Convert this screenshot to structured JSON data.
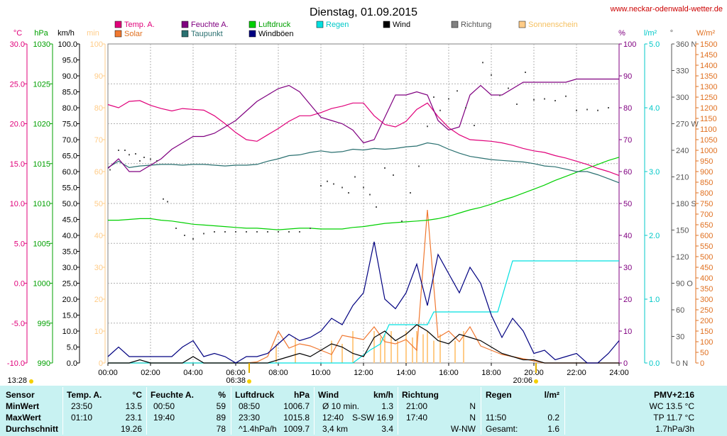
{
  "title": "Dienstag, 01.09.2015",
  "website": "www.neckar-odenwald-wetter.de",
  "time_top": "",
  "colors": {
    "temp": "#e0007a",
    "humidity": "#800080",
    "pressure": "#00d000",
    "rain": "#00e0e0",
    "wind": "#000000",
    "direction": "#555555",
    "sunshine": "#ffcc88",
    "solar": "#f07830",
    "dewpoint": "#2a7070",
    "gust": "#000080",
    "grid": "#c0c0c0",
    "table_bg": "#c8f2f2"
  },
  "legend": [
    {
      "label": "Temp. A.",
      "color": "#e0007a",
      "text_color": "#e0007a"
    },
    {
      "label": "Feuchte A.",
      "color": "#800080",
      "text_color": "#800080"
    },
    {
      "label": "Luftdruck",
      "color": "#00d000",
      "text_color": "#00a000"
    },
    {
      "label": "Regen",
      "color": "#00e0e0",
      "text_color": "#00c8c8"
    },
    {
      "label": "Wind",
      "color": "#000000",
      "text_color": "#000000"
    },
    {
      "label": "Richtung",
      "color": "#808080",
      "text_color": "#555555"
    },
    {
      "label": "Sonnenschein",
      "color": "#ffcc88",
      "text_color": "#f5c060"
    },
    {
      "label": "Solar",
      "color": "#f07830",
      "text_color": "#e07020"
    },
    {
      "label": "Taupunkt",
      "color": "#2a7070",
      "text_color": "#2a7070"
    },
    {
      "label": "Windböen",
      "color": "#000080",
      "text_color": "#000000"
    }
  ],
  "axis_units": {
    "temp": "°C",
    "pressure": "hPa",
    "wind": "km/h",
    "sunshine": "min",
    "humidity": "%",
    "rain": "l/m²",
    "direction": "°",
    "solar": "W/m²"
  },
  "axis_ticks": {
    "temp": [
      "30.0",
      "25.0",
      "20.0",
      "15.0",
      "10.0",
      "5.0",
      "0.0",
      "-5.0",
      "-10.0"
    ],
    "pressure": [
      "1030",
      "1025",
      "1020",
      "1015",
      "1010",
      "1005",
      "1000",
      "995",
      "990"
    ],
    "wind": [
      "100.0",
      "95.0",
      "90.0",
      "85.0",
      "80.0",
      "75.0",
      "70.0",
      "65.0",
      "60.0",
      "55.0",
      "50.0",
      "45.0",
      "40.0",
      "35.0",
      "30.0",
      "25.0",
      "20.0",
      "15.0",
      "10.0",
      "5.0",
      "0.0"
    ],
    "sunshine": [
      "100",
      "90",
      "80",
      "70",
      "60",
      "50",
      "40",
      "30",
      "20",
      "10",
      "0"
    ],
    "humidity": [
      "100",
      "90",
      "80",
      "70",
      "60",
      "50",
      "40",
      "30",
      "20",
      "10",
      "0"
    ],
    "rain": [
      "5.0",
      "4.0",
      "3.0",
      "2.0",
      "1.0",
      "0.0"
    ],
    "direction": [
      "360 N",
      "330",
      "300",
      "270 W",
      "240",
      "210",
      "180 S",
      "150",
      "120",
      "90 O",
      "60",
      "30",
      "0 N"
    ],
    "solar": [
      "1500",
      "1450",
      "1400",
      "1350",
      "1300",
      "1250",
      "1200",
      "1150",
      "1100",
      "1050",
      "1000",
      "950",
      "900",
      "850",
      "800",
      "750",
      "700",
      "650",
      "600",
      "550",
      "500",
      "450",
      "400",
      "350",
      "300",
      "250",
      "200",
      "150",
      "100",
      "50",
      "0"
    ],
    "x": [
      "00:00",
      "02:00",
      "04:00",
      "06:00",
      "08:00",
      "10:00",
      "12:00",
      "14:00",
      "16:00",
      "18:00",
      "20:00",
      "22:00",
      "24:00"
    ]
  },
  "sun": {
    "moonrise": "13:28",
    "sunrise": "06:38",
    "sunset": "20:06"
  },
  "chart_data": {
    "type": "line",
    "title": "Dienstag, 01.09.2015",
    "x_unit": "hours",
    "xlim": [
      0,
      24
    ],
    "ylim": {
      "temp": [
        -10,
        30
      ],
      "pressure": [
        990,
        1030
      ],
      "wind": [
        0,
        100
      ],
      "sunshine": [
        0,
        100
      ],
      "humidity": [
        0,
        100
      ],
      "rain": [
        0,
        5
      ],
      "direction": [
        0,
        360
      ],
      "solar": [
        0,
        1500
      ]
    },
    "series": [
      {
        "name": "Temp. A.",
        "axis": "temp",
        "x": [
          0,
          0.5,
          1,
          1.5,
          2,
          2.5,
          3,
          3.5,
          4,
          4.5,
          5,
          5.5,
          6,
          6.5,
          7,
          7.5,
          8,
          8.5,
          9,
          9.5,
          10,
          10.5,
          11,
          11.5,
          12,
          12.5,
          13,
          13.5,
          14,
          14.5,
          15,
          15.5,
          16,
          16.5,
          17,
          17.5,
          18,
          18.5,
          19,
          19.5,
          20,
          20.5,
          21,
          21.5,
          22,
          22.5,
          23,
          23.5,
          24
        ],
        "values": [
          22.4,
          22.0,
          22.8,
          22.9,
          22.3,
          21.9,
          21.6,
          21.9,
          21.8,
          21.7,
          21.0,
          20.0,
          18.9,
          18.0,
          17.8,
          18.6,
          19.4,
          20.3,
          21.0,
          21.0,
          21.4,
          21.9,
          22.2,
          22.6,
          22.6,
          21.0,
          19.9,
          19.6,
          20.3,
          21.8,
          22.6,
          20.9,
          19.5,
          18.6,
          18.0,
          17.9,
          17.8,
          17.6,
          17.3,
          16.9,
          16.6,
          16.4,
          16.0,
          15.7,
          15.3,
          14.9,
          14.4,
          14.0,
          13.5
        ]
      },
      {
        "name": "Feuchte A.",
        "axis": "humidity",
        "x": [
          0,
          0.5,
          1,
          1.5,
          2,
          2.5,
          3,
          3.5,
          4,
          4.5,
          5,
          5.5,
          6,
          6.5,
          7,
          7.5,
          8,
          8.5,
          9,
          9.5,
          10,
          10.5,
          11,
          11.5,
          12,
          12.5,
          13,
          13.5,
          14,
          14.5,
          15,
          15.5,
          16,
          16.5,
          17,
          17.5,
          18,
          18.5,
          19,
          19.5,
          20,
          20.5,
          21,
          21.5,
          22,
          22.5,
          23,
          23.5,
          24
        ],
        "values": [
          61,
          64,
          60,
          60,
          62,
          64,
          67,
          69,
          71,
          71,
          72,
          74,
          76,
          79,
          82,
          84,
          86,
          87,
          85,
          81,
          77,
          76,
          75,
          73,
          69,
          70,
          77,
          84,
          84,
          85,
          84,
          76,
          73,
          74,
          84,
          87,
          84,
          84,
          86,
          88,
          88,
          88,
          88,
          88,
          89,
          89,
          89,
          89,
          89
        ]
      },
      {
        "name": "Taupunkt",
        "axis": "temp",
        "x": [
          0,
          0.5,
          1,
          1.5,
          2,
          2.5,
          3,
          3.5,
          4,
          4.5,
          5,
          5.5,
          6,
          6.5,
          7,
          7.5,
          8,
          8.5,
          9,
          9.5,
          10,
          10.5,
          11,
          11.5,
          12,
          12.5,
          13,
          13.5,
          14,
          14.5,
          15,
          15.5,
          16,
          16.5,
          17,
          17.5,
          18,
          18.5,
          19,
          19.5,
          20,
          20.5,
          21,
          21.5,
          22,
          22.5,
          23,
          23.5,
          24
        ],
        "values": [
          14.5,
          15.3,
          14.5,
          14.7,
          14.8,
          14.9,
          14.9,
          14.8,
          14.9,
          14.9,
          14.8,
          14.7,
          14.8,
          14.8,
          14.9,
          15.3,
          15.6,
          16.0,
          16.1,
          16.4,
          16.6,
          16.4,
          16.5,
          16.8,
          16.7,
          16.9,
          16.8,
          16.9,
          17.1,
          17.2,
          17.6,
          17.4,
          16.8,
          16.3,
          15.9,
          15.7,
          15.5,
          15.4,
          15.3,
          15.2,
          15.0,
          14.7,
          14.6,
          14.3,
          14.0,
          14.0,
          13.6,
          13.1,
          12.6
        ]
      },
      {
        "name": "Luftdruck",
        "axis": "pressure",
        "x": [
          0,
          0.5,
          1,
          1.5,
          2,
          2.5,
          3,
          3.5,
          4,
          4.5,
          5,
          5.5,
          6,
          6.5,
          7,
          7.5,
          8,
          8.5,
          9,
          9.5,
          10,
          10.5,
          11,
          11.5,
          12,
          12.5,
          13,
          13.5,
          14,
          14.5,
          15,
          15.5,
          16,
          16.5,
          17,
          17.5,
          18,
          18.5,
          19,
          19.5,
          20,
          20.5,
          21,
          21.5,
          22,
          22.5,
          23,
          23.5,
          24
        ],
        "values": [
          1007.9,
          1007.9,
          1008.0,
          1008.1,
          1008.1,
          1007.9,
          1007.8,
          1007.6,
          1007.4,
          1007.3,
          1007.2,
          1007.1,
          1007.0,
          1006.9,
          1006.9,
          1006.8,
          1006.7,
          1006.8,
          1006.9,
          1006.9,
          1006.8,
          1006.8,
          1006.8,
          1007.0,
          1007.1,
          1007.3,
          1007.5,
          1007.6,
          1007.7,
          1007.8,
          1007.9,
          1008.1,
          1008.4,
          1008.8,
          1009.2,
          1009.5,
          1009.9,
          1010.4,
          1010.8,
          1011.3,
          1011.8,
          1012.3,
          1012.9,
          1013.4,
          1013.9,
          1014.4,
          1014.9,
          1015.4,
          1015.8
        ]
      },
      {
        "name": "Wind",
        "axis": "wind",
        "x": [
          0,
          0.5,
          1,
          1.5,
          2,
          2.5,
          3,
          3.5,
          4,
          4.5,
          5,
          5.5,
          6,
          6.5,
          7,
          7.5,
          8,
          8.5,
          9,
          9.5,
          10,
          10.5,
          11,
          11.5,
          12,
          12.5,
          13,
          13.5,
          14,
          14.5,
          15,
          15.5,
          16,
          16.5,
          17,
          17.5,
          18,
          18.5,
          19,
          19.5,
          20,
          20.5,
          21,
          21.5,
          22,
          22.5,
          23,
          23.5,
          24
        ],
        "values": [
          0,
          0,
          0,
          1,
          0,
          0,
          0,
          0,
          2,
          0,
          0,
          0,
          0,
          0,
          0,
          0,
          1,
          2,
          3,
          2,
          4,
          6,
          5,
          3,
          2,
          8,
          10,
          7,
          9,
          12,
          10,
          7,
          6,
          9,
          8,
          7,
          5,
          3,
          2,
          1,
          1,
          0,
          0,
          0,
          0,
          0,
          0,
          0,
          0
        ]
      },
      {
        "name": "Windböen",
        "axis": "wind",
        "x": [
          0,
          0.5,
          1,
          1.5,
          2,
          2.5,
          3,
          3.5,
          4,
          4.5,
          5,
          5.5,
          6,
          6.5,
          7,
          7.5,
          8,
          8.5,
          9,
          9.5,
          10,
          10.5,
          11,
          11.5,
          12,
          12.5,
          13,
          13.5,
          14,
          14.5,
          15,
          15.5,
          16,
          16.5,
          17,
          17.5,
          18,
          18.5,
          19,
          19.5,
          20,
          20.5,
          21,
          21.5,
          22,
          22.5,
          23,
          23.5,
          24
        ],
        "values": [
          2,
          5,
          2,
          2,
          2,
          2,
          2,
          5,
          7,
          2,
          3,
          2,
          0,
          2,
          2,
          3,
          6,
          9,
          7,
          8,
          10,
          14,
          12,
          18,
          22,
          38,
          20,
          17,
          22,
          31,
          18,
          34,
          28,
          22,
          30,
          25,
          15,
          8,
          14,
          10,
          3,
          4,
          1,
          2,
          3,
          0,
          0,
          3,
          7
        ]
      },
      {
        "name": "Regen",
        "axis": "rain",
        "x": [
          0,
          11.5,
          12.3,
          12.8,
          13.2,
          15.0,
          15.3,
          17.5,
          18.3,
          19.0,
          24
        ],
        "values": [
          0,
          0,
          0.2,
          0.3,
          0.6,
          0.6,
          0.8,
          0.8,
          0.8,
          1.6,
          1.6
        ]
      },
      {
        "name": "Solar",
        "axis": "solar",
        "x": [
          0,
          6.5,
          7,
          7.5,
          8,
          8.5,
          9,
          9.5,
          10,
          10.5,
          11,
          11.5,
          12,
          12.5,
          13,
          13.5,
          14,
          14.5,
          15,
          15.5,
          16,
          16.5,
          17,
          17.5,
          18,
          18.5,
          19,
          19.5,
          20,
          20.5,
          24
        ],
        "values": [
          0,
          0,
          5,
          30,
          150,
          70,
          90,
          80,
          60,
          40,
          130,
          120,
          110,
          170,
          100,
          90,
          110,
          60,
          720,
          120,
          150,
          100,
          170,
          80,
          60,
          40,
          30,
          20,
          10,
          0,
          0
        ]
      },
      {
        "name": "Sonnenschein",
        "axis": "sunshine",
        "type": "bar",
        "x": [
          7.9,
          8.8,
          10.5,
          11.0,
          11.5,
          12.5,
          12.8,
          13.0,
          13.3,
          13.6,
          14.0,
          14.3,
          14.5,
          14.8,
          15.0,
          15.3,
          15.6,
          16.3,
          16.7
        ],
        "values": [
          6,
          8,
          7,
          6,
          10,
          10,
          8,
          9,
          10,
          7,
          10,
          8,
          10,
          9,
          10,
          7,
          9,
          7,
          10
        ]
      },
      {
        "name": "Richtung",
        "axis": "direction",
        "type": "scatter",
        "x": [
          0.1,
          0.5,
          0.8,
          1.0,
          1.3,
          1.5,
          1.7,
          2.0,
          2.3,
          2.6,
          2.8,
          3.2,
          3.6,
          4.0,
          4.5,
          5.0,
          5.5,
          6.0,
          6.5,
          7.0,
          7.5,
          8.0,
          8.5,
          9.0,
          9.5,
          10.0,
          10.3,
          10.6,
          11.0,
          11.3,
          11.6,
          12.0,
          12.3,
          12.6,
          13.0,
          13.4,
          13.8,
          14.2,
          14.6,
          15.0,
          15.3,
          15.6,
          16.0,
          16.4,
          16.8,
          17.2,
          17.6,
          18.0,
          18.4,
          18.8,
          19.2,
          19.6,
          20.0,
          20.5,
          21.0,
          21.5,
          22.0,
          22.5,
          23.0,
          23.5
        ],
        "values": [
          218,
          240,
          240,
          235,
          236,
          228,
          232,
          230,
          228,
          185,
          182,
          152,
          144,
          140,
          146,
          148,
          148,
          148,
          148,
          148,
          148,
          148,
          148,
          148,
          152,
          200,
          205,
          202,
          198,
          192,
          210,
          198,
          190,
          176,
          220,
          212,
          160,
          192,
          222,
          267,
          300,
          285,
          298,
          307,
          288,
          268,
          339,
          325,
          302,
          310,
          292,
          328,
          297,
          298,
          296,
          301,
          285,
          286,
          285,
          288
        ]
      }
    ]
  },
  "table": {
    "headers": {
      "sensor": "Sensor",
      "temp": "Temp. A.",
      "temp_unit": "°C",
      "hum": "Feuchte A.",
      "hum_unit": "%",
      "press": "Luftdruck",
      "press_unit": "hPa",
      "wind": "Wind",
      "wind_unit": "km/h",
      "dir": "Richtung",
      "rain": "Regen",
      "rain_unit": "l/m²",
      "pmv": "PMV+2:16"
    },
    "rows": [
      {
        "label": "MinWert",
        "temp_time": "23:50",
        "temp_val": "13.5",
        "hum_time": "00:50",
        "hum_val": "59",
        "press_time": "08:50",
        "press_val": "1006.7",
        "wind_time": "Ø 10 min.",
        "wind_val": "1.3",
        "dir_time": "21:00",
        "dir_val": "N",
        "rain_time": "",
        "rain_val": "",
        "extra": "WC 13.5 °C"
      },
      {
        "label": "MaxWert",
        "temp_time": "01:10",
        "temp_val": "23.1",
        "hum_time": "19:40",
        "hum_val": "89",
        "press_time": "23:30",
        "press_val": "1015.8",
        "wind_time": "12:40",
        "wind_val": "S-SW 16.9",
        "dir_time": "17:40",
        "dir_val": "N",
        "rain_time": "11:50",
        "rain_val": "0.2",
        "extra": "TP 11.7 °C"
      },
      {
        "label": "Durchschnitt",
        "temp_time": "",
        "temp_val": "19.26",
        "hum_time": "",
        "hum_val": "78",
        "press_time": "^1.4hPa/h",
        "press_val": "1009.7",
        "wind_time": "3,4 km",
        "wind_val": "3.4",
        "dir_time": "",
        "dir_val": "W-NW",
        "rain_time": "Gesamt:",
        "rain_val": "1.6",
        "extra": "1.7hPa/3h"
      }
    ]
  }
}
